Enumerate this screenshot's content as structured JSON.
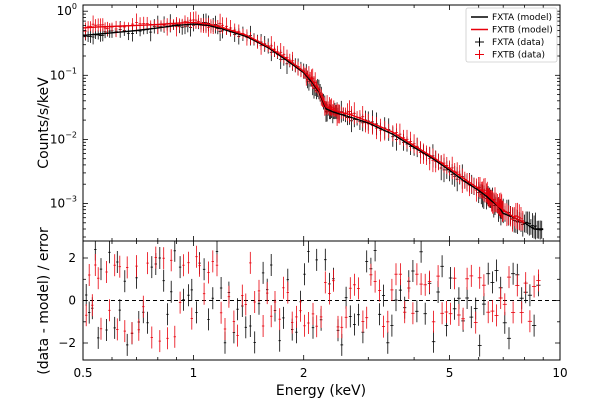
{
  "colors": {
    "fxta": "#000000",
    "fxtb": "#e8000b",
    "frame": "#000000"
  },
  "chart_data": [
    {
      "type": "line",
      "panel": "spectrum",
      "xscale": "log",
      "yscale": "log",
      "xlim": [
        0.5,
        10
      ],
      "ylim": [
        0.00026,
        1.25
      ],
      "ylabel": "Counts/s/keV",
      "y_ticks": [
        {
          "value": 1,
          "label_base": "10",
          "label_exp": "0"
        },
        {
          "value": 0.1,
          "label_base": "10",
          "label_exp": "−1"
        },
        {
          "value": 0.01,
          "label_base": "10",
          "label_exp": "−2"
        },
        {
          "value": 0.001,
          "label_base": "10",
          "label_exp": "−3"
        }
      ],
      "legend": {
        "placement": "top-right",
        "entries": [
          {
            "label": "FXTA (model)",
            "kind": "line",
            "series": "fxta"
          },
          {
            "label": "FXTB (model)",
            "kind": "line",
            "series": "fxtb"
          },
          {
            "label": "FXTA (data)",
            "kind": "cross",
            "series": "fxta"
          },
          {
            "label": "FXTB (data)",
            "kind": "cross",
            "series": "fxtb"
          }
        ]
      },
      "series": [
        {
          "name": "FXTA (model)",
          "color_key": "fxta",
          "x": [
            0.5,
            0.55,
            0.6,
            0.7,
            0.8,
            0.9,
            1.0,
            1.1,
            1.2,
            1.4,
            1.6,
            1.8,
            2.0,
            2.1,
            2.2,
            2.3,
            2.4,
            2.5,
            2.7,
            3.0,
            3.5,
            4.0,
            4.5,
            5.0,
            5.5,
            6.0,
            6.3,
            6.5,
            6.8,
            7.0,
            7.5,
            8.0,
            8.5,
            9.0
          ],
          "y": [
            0.42,
            0.44,
            0.46,
            0.5,
            0.55,
            0.6,
            0.63,
            0.6,
            0.53,
            0.4,
            0.27,
            0.17,
            0.11,
            0.08,
            0.055,
            0.03,
            0.027,
            0.025,
            0.022,
            0.018,
            0.012,
            0.0075,
            0.005,
            0.0033,
            0.0022,
            0.0016,
            0.0013,
            0.0011,
            0.0009,
            0.0007,
            0.0006,
            0.0005,
            0.0004,
            0.0004
          ]
        },
        {
          "name": "FXTB (model)",
          "color_key": "fxtb",
          "x": [
            0.5,
            0.55,
            0.6,
            0.7,
            0.8,
            0.9,
            1.0,
            1.1,
            1.2,
            1.4,
            1.6,
            1.8,
            2.0,
            2.1,
            2.2,
            2.3,
            2.4,
            2.5,
            2.7,
            3.0,
            3.5,
            4.0,
            4.5,
            5.0,
            5.5,
            6.0,
            6.3,
            6.5,
            6.8,
            7.0,
            7.5,
            8.0
          ],
          "y": [
            0.55,
            0.57,
            0.58,
            0.6,
            0.62,
            0.65,
            0.67,
            0.63,
            0.56,
            0.42,
            0.28,
            0.18,
            0.115,
            0.085,
            0.058,
            0.032,
            0.029,
            0.027,
            0.024,
            0.019,
            0.013,
            0.008,
            0.0053,
            0.0035,
            0.0024,
            0.0017,
            0.0014,
            0.0012,
            0.0009,
            0.0008,
            0.0006,
            0.0005
          ]
        }
      ]
    },
    {
      "type": "scatter",
      "panel": "residuals",
      "xscale": "log",
      "xlim": [
        0.5,
        10
      ],
      "ylim": [
        -2.8,
        2.8
      ],
      "xlabel": "Energy (keV)",
      "ylabel": "(data - model) / error",
      "x_ticks": [
        {
          "value": 0.5,
          "label": "0.5"
        },
        {
          "value": 1,
          "label": "1"
        },
        {
          "value": 2,
          "label": "2"
        },
        {
          "value": 5,
          "label": "5"
        },
        {
          "value": 10,
          "label": "10"
        }
      ],
      "y_ticks": [
        {
          "value": 2,
          "label": "2"
        },
        {
          "value": 0,
          "label": "0"
        },
        {
          "value": -2,
          "label": "−2"
        }
      ],
      "reference_line": 0,
      "series": [
        {
          "name": "FXTA (data)",
          "color_key": "fxta",
          "x": [
            0.51,
            0.52,
            0.53,
            0.54,
            0.55,
            0.56,
            0.58,
            0.59,
            0.61,
            0.62,
            0.63,
            0.65,
            0.66,
            0.68,
            0.7,
            0.71,
            0.73,
            0.75,
            0.77,
            0.79,
            0.81,
            0.83,
            0.85,
            0.87,
            0.89,
            0.92,
            0.94,
            0.97,
            0.99,
            1.02,
            1.04,
            1.07,
            1.1,
            1.13,
            1.16,
            1.19,
            1.22,
            1.25,
            1.29,
            1.32,
            1.36,
            1.39,
            1.43,
            1.47,
            1.51,
            1.55,
            1.59,
            1.63,
            1.67,
            1.72,
            1.76,
            1.81,
            1.86,
            1.91,
            1.96,
            2.01,
            2.06,
            2.12,
            2.17,
            2.23,
            2.29,
            2.35,
            2.41,
            2.48,
            2.54,
            2.61,
            2.68,
            2.75,
            2.82,
            2.9,
            2.97,
            3.05,
            3.13,
            3.22,
            3.3,
            3.39,
            3.48,
            3.57,
            3.67,
            3.77,
            3.87,
            3.97,
            4.07,
            4.18,
            4.29,
            4.41,
            4.52,
            4.65,
            4.77,
            4.9,
            5.03,
            5.16,
            5.3,
            5.44,
            5.58,
            5.73,
            5.89,
            6.04,
            6.2,
            6.37,
            6.54,
            6.71,
            6.89,
            7.07,
            7.26,
            7.45,
            7.65,
            7.86,
            8.06,
            8.28,
            8.5,
            8.73
          ],
          "y": [
            0.26,
            -0.57,
            -0.36,
            2.4,
            -1.76,
            1.48,
            -1.39,
            2.27,
            -1.29,
            1.81,
            -0.45,
            0.91,
            -2.09,
            -1.55,
            1.07,
            -1.01,
            -0.55,
            -1.05,
            1.57,
            1.72,
            2.0,
            0.93,
            -0.65,
            0.41,
            2.34,
            1.57,
            0.04,
            0.25,
            0.5,
            -0.56,
            1.76,
            1.47,
            -0.89,
            0.11,
            2.3,
            0.59,
            -1.99,
            0.37,
            -1.5,
            -0.41,
            -0.26,
            -1.26,
            -1.2,
            -1.97,
            -0.15,
            1.3,
            0.51,
            1.67,
            -0.47,
            -1.89,
            -0.82,
            0.98,
            -1.37,
            -1.49,
            -0.06,
            1.24,
            2.3,
            -1.28,
            1.91,
            -0.91,
            1.92,
            0.78,
            1.02,
            -1.4,
            -2.09,
            0.13,
            -0.75,
            -1.13,
            -0.67,
            -1.49,
            1.84,
            1.49,
            2.36,
            -0.65,
            0.23,
            -1.99,
            -1.18,
            0.02,
            0.49,
            -0.34,
            0.91,
            1.39,
            -0.51,
            2.29,
            -0.62,
            0.81,
            -1.94,
            0.4,
            1.61,
            -1.17,
            1.06,
            -0.39,
            0.11,
            -0.96,
            0.12,
            -0.78,
            -0.38,
            -2.12,
            -0.17,
            1.26,
            0.85,
            1.41,
            0.6,
            -1.05,
            -1.78,
            1.26,
            1.21,
            0.11,
            0.39,
            0.25,
            -1.18,
            0.72
          ]
        },
        {
          "name": "FXTB (data)",
          "color_key": "fxtb",
          "x": [
            0.51,
            0.52,
            0.53,
            0.54,
            0.55,
            0.56,
            0.58,
            0.59,
            0.61,
            0.62,
            0.63,
            0.65,
            0.66,
            0.68,
            0.7,
            0.71,
            0.73,
            0.75,
            0.77,
            0.79,
            0.81,
            0.83,
            0.85,
            0.87,
            0.89,
            0.92,
            0.94,
            0.97,
            0.99,
            1.02,
            1.04,
            1.07,
            1.1,
            1.13,
            1.16,
            1.19,
            1.22,
            1.25,
            1.29,
            1.32,
            1.36,
            1.39,
            1.43,
            1.47,
            1.51,
            1.55,
            1.59,
            1.63,
            1.67,
            1.72,
            1.76,
            1.81,
            1.86,
            1.91,
            1.96,
            2.01,
            2.06,
            2.12,
            2.17,
            2.23,
            2.29,
            2.35,
            2.41,
            2.48,
            2.54,
            2.61,
            2.68,
            2.75,
            2.82,
            2.9,
            2.97,
            3.05,
            3.13,
            3.22,
            3.3,
            3.39,
            3.48,
            3.57,
            3.67,
            3.77,
            3.87,
            3.97,
            4.07,
            4.18,
            4.29,
            4.41,
            4.52,
            4.65,
            4.77,
            4.9,
            5.03,
            5.16,
            5.3,
            5.44,
            5.58,
            5.73,
            5.89,
            6.04,
            6.2,
            6.37,
            6.54,
            6.71,
            6.89,
            7.07,
            7.26,
            7.45,
            7.65,
            7.86,
            8.06,
            8.28,
            8.5,
            8.73
          ],
          "y": [
            -0.69,
            1.2,
            -0.22,
            1.67,
            1.05,
            -1.33,
            1.34,
            -0.46,
            1.66,
            -1.36,
            1.59,
            -1.44,
            1.56,
            -1.53,
            1.62,
            -1.38,
            -0.29,
            1.76,
            -1.74,
            2.02,
            -1.91,
            1.99,
            -1.78,
            1.89,
            -1.71,
            -0.1,
            1.66,
            1.78,
            -0.85,
            2.06,
            1.64,
            0.32,
            1.32,
            1.84,
            1.66,
            -0.58,
            -1.34,
            0.18,
            -0.99,
            -1.65,
            0.23,
            -0.19,
            1.77,
            -0.07,
            0.45,
            -1.2,
            0.35,
            -0.74,
            -0.07,
            -0.88,
            0.6,
            0.37,
            -1.04,
            -0.77,
            -0.48,
            -1.19,
            -1.06,
            -0.63,
            -1.21,
            -0.77,
            0.85,
            0.33,
            0.93,
            -1.24,
            -1.26,
            -0.79,
            0.58,
            0.74,
            0.57,
            -0.99,
            -0.81,
            1.21,
            0.89,
            0.47,
            -1.23,
            -1.0,
            0.5,
            1.24,
            1.24,
            -0.55,
            0.59,
            -0.6,
            1.24,
            0.77,
            0.74,
            0.89,
            -1.0,
            1.15,
            -0.6,
            -0.54,
            -0.62,
            1.05,
            -0.68,
            -0.86,
            1.02,
            1.16,
            -1.04,
            1.07,
            0.72,
            -0.55,
            -0.5,
            -0.7,
            0.12,
            -0.18,
            1.1,
            -0.56,
            0.71,
            -0.56,
            0.82,
            -0.98,
            0.66,
            0.94
          ]
        }
      ]
    }
  ]
}
